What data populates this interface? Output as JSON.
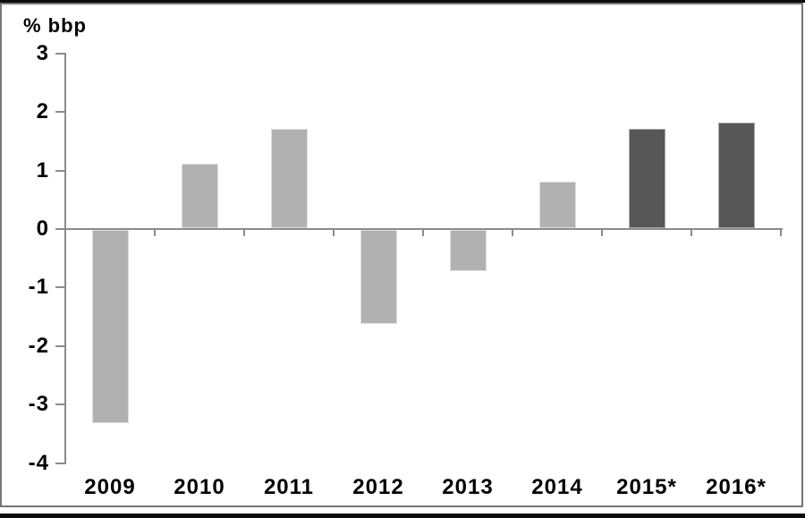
{
  "chart_data": {
    "type": "bar",
    "title": "",
    "ylabel": "% bbp",
    "xlabel": "",
    "categories": [
      "2009",
      "2010",
      "2011",
      "2012",
      "2013",
      "2014",
      "2015*",
      "2016*"
    ],
    "values": [
      -3.3,
      1.1,
      1.7,
      -1.6,
      -0.7,
      0.8,
      1.7,
      1.8
    ],
    "bar_style_index": [
      0,
      0,
      0,
      0,
      0,
      0,
      1,
      1
    ],
    "bar_styles": [
      {
        "fill": "#b1b1b1",
        "border": "#dedede"
      },
      {
        "fill": "#575757",
        "border": "#ababab"
      }
    ],
    "ylim": [
      -4,
      3
    ],
    "yticks": [
      3,
      2,
      1,
      0,
      -1,
      -2,
      -3,
      -4
    ],
    "grid": false,
    "legend": "none",
    "axis_color": "#8c8c8c",
    "text_color": "#000000",
    "frame_color": "#767676",
    "rule_color": "#0d0d0d"
  }
}
